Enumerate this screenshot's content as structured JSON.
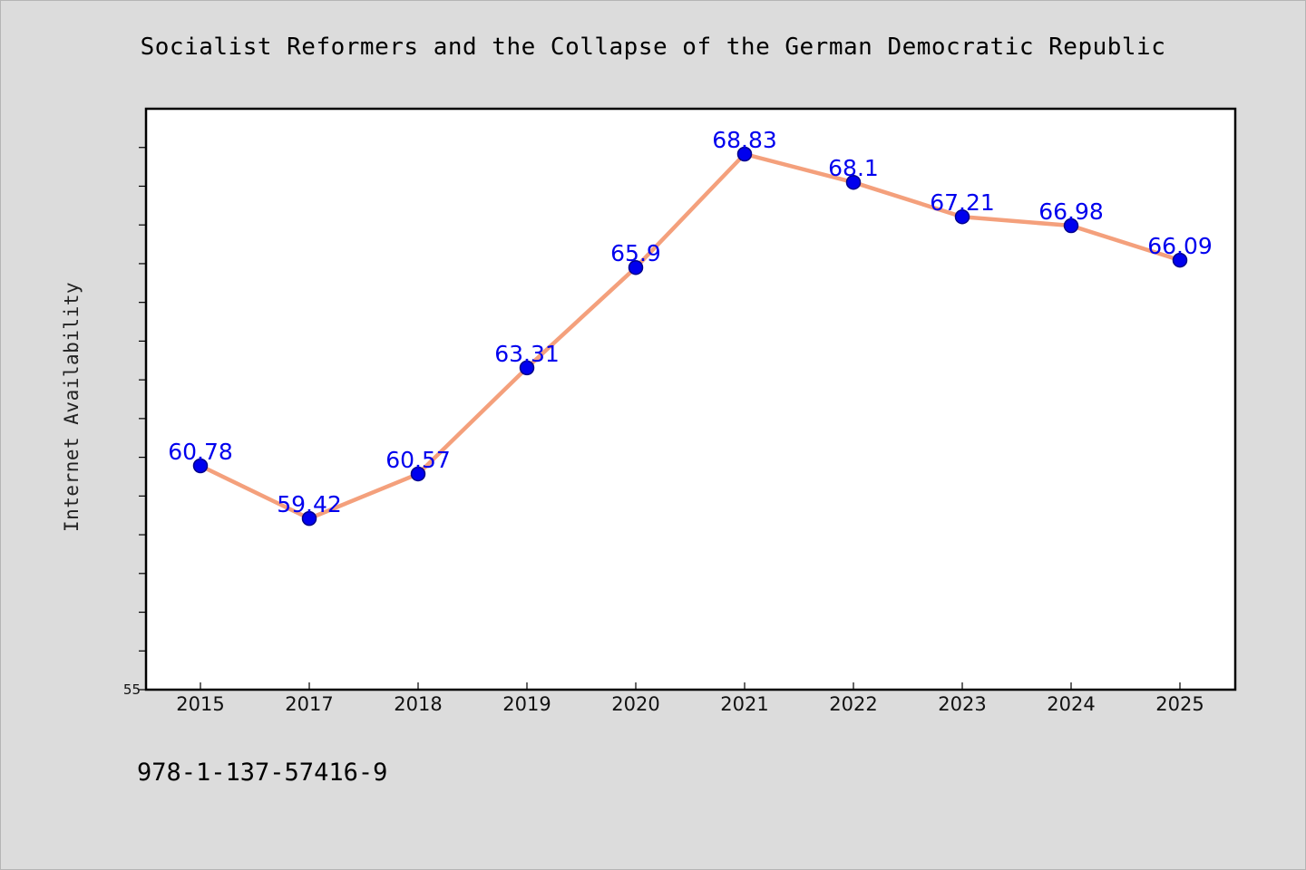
{
  "chart_data": {
    "type": "line",
    "title": "Socialist Reformers and the Collapse of the German Democratic Republic",
    "xlabel": "",
    "ylabel": "Internet Availability",
    "categories": [
      "2015",
      "2017",
      "2018",
      "2019",
      "2020",
      "2021",
      "2022",
      "2023",
      "2024",
      "2025"
    ],
    "series": [
      {
        "values": [
          60.78,
          59.42,
          60.57,
          63.31,
          65.9,
          68.83,
          68.1,
          67.21,
          66.98,
          66.09
        ]
      }
    ],
    "data_labels": [
      "60.78",
      "59.42",
      "60.57",
      "63.31",
      "65.9",
      "68.83",
      "68.1",
      "67.21",
      "66.98",
      "66.09"
    ],
    "ylim": [
      55,
      70
    ],
    "y_major_ticks": [
      55
    ],
    "y_major_tick_labels": [
      "55"
    ],
    "y_minor_step": 1,
    "grid": false,
    "legend": "none",
    "colors": {
      "line": "#f4a07c",
      "marker": "#0000ee",
      "marker_edge": "#00008b",
      "data_label": "#0000ee",
      "background": "#dcdcdc",
      "plot_background": "#ffffff"
    }
  },
  "footer": {
    "code": "978-1-137-57416-9"
  }
}
